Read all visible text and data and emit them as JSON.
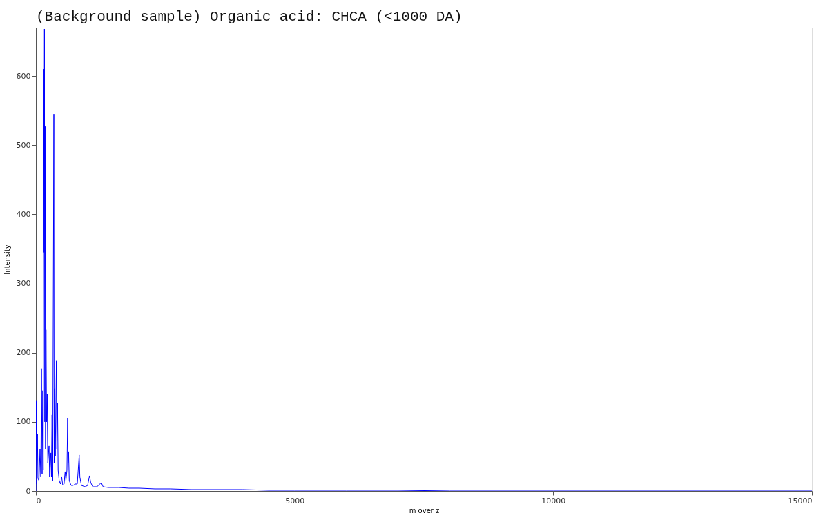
{
  "chart_data": {
    "type": "line",
    "title": "(Background sample) Organic acid: CHCA (<1000 DA)",
    "xlabel": "m over z",
    "ylabel": "Intensity",
    "xlim": [
      0,
      15000
    ],
    "xticks": [
      0,
      5000,
      10000,
      15000
    ],
    "ylim": [
      0,
      670
    ],
    "yticks": [
      0,
      100,
      200,
      300,
      400,
      500,
      600
    ],
    "grid": false,
    "marker": "none",
    "line_style": "solid",
    "series": [
      {
        "color": "#0000ff",
        "x": [
          0,
          9,
          15,
          30,
          40,
          60,
          80,
          95,
          107,
          120,
          133,
          142,
          150,
          158,
          165,
          172,
          178,
          187,
          196,
          206,
          218,
          230,
          254,
          265,
          290,
          300,
          311,
          325,
          347,
          353,
          360,
          375,
          396,
          405,
          418,
          430,
          450,
          475,
          498,
          520,
          545,
          565,
          580,
          600,
          614,
          623,
          632,
          645,
          680,
          720,
          760,
          800,
          837,
          850,
          880,
          950,
          1000,
          1037,
          1060,
          1100,
          1180,
          1264,
          1300,
          1400,
          1600,
          1800,
          2000,
          2300,
          2600,
          3000,
          3500,
          4000,
          4500,
          5000,
          6000,
          7000,
          8000,
          10000,
          12000,
          15000
        ],
        "values": [
          0,
          130,
          10,
          82,
          18,
          15,
          60,
          20,
          177,
          25,
          145,
          30,
          610,
          345,
          668,
          100,
          527,
          60,
          233,
          100,
          140,
          40,
          65,
          20,
          55,
          20,
          110,
          15,
          545,
          40,
          148,
          50,
          188,
          60,
          127,
          30,
          15,
          10,
          20,
          8,
          10,
          28,
          15,
          30,
          105,
          40,
          57,
          15,
          8,
          8,
          10,
          10,
          52,
          20,
          8,
          6,
          8,
          22,
          12,
          6,
          6,
          12,
          6,
          5,
          5,
          4,
          4,
          3,
          3,
          2,
          2,
          2,
          1,
          1,
          1,
          1,
          0,
          0,
          0,
          0
        ]
      }
    ]
  }
}
